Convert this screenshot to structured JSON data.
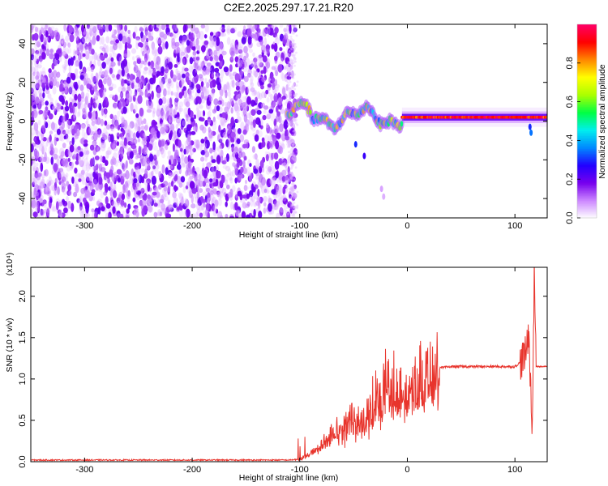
{
  "chart_data": [
    {
      "type": "heatmap",
      "title": "C2E2.2025.297.17.21.R20",
      "xlabel": "Height of straight line (km)",
      "ylabel": "Frequency (Hz)",
      "xlim": [
        -350,
        130
      ],
      "ylim": [
        -50,
        50
      ],
      "xticks": [
        "-300",
        "-200",
        "-100",
        "0",
        "100"
      ],
      "xtick_values": [
        -300,
        -200,
        -100,
        0,
        100
      ],
      "yticks": [
        "-40",
        "-20",
        "0",
        "20",
        "40"
      ],
      "ytick_values": [
        -40,
        -20,
        0,
        20,
        40
      ],
      "colorbar": {
        "label": "Normalized spectral amplitude",
        "range": [
          0,
          1
        ],
        "ticks": [
          "0.0",
          "0.2",
          "0.4",
          "0.6",
          "0.8"
        ],
        "tick_values": [
          0.0,
          0.2,
          0.4,
          0.6,
          0.8
        ],
        "colors": [
          "#ffffff",
          "#cc88ff",
          "#7700ee",
          "#2200ff",
          "#0088ff",
          "#00eeee",
          "#00ff44",
          "#aaff00",
          "#ffff00",
          "#ff8800",
          "#ff0000",
          "#ff0066"
        ]
      },
      "regions": [
        {
          "name": "broadband noise",
          "x_range": [
            -350,
            -110
          ],
          "y_range": [
            -50,
            50
          ],
          "amplitude": 0.15
        },
        {
          "name": "narrow line",
          "x_range": [
            -110,
            130
          ],
          "frequency_hz": 2,
          "max_amplitude": 1.0
        }
      ]
    },
    {
      "type": "line",
      "xlabel": "Height of straight line (km)",
      "ylabel": "SNR (10 * v/v)",
      "yscale_label": "(x10⁴)",
      "xlim": [
        -350,
        130
      ],
      "ylim": [
        0,
        2.35
      ],
      "xticks": [
        "-300",
        "-200",
        "-100",
        "0",
        "100"
      ],
      "xtick_values": [
        -300,
        -200,
        -100,
        0,
        100
      ],
      "yticks": [
        "0.0",
        "0.5",
        "1.0",
        "1.5",
        "2.0"
      ],
      "ytick_values": [
        0.0,
        0.5,
        1.0,
        1.5,
        2.0
      ],
      "series": [
        {
          "name": "SNR",
          "color": "#e8342c",
          "x": [
            -350,
            -110,
            -100,
            -90,
            -80,
            -70,
            -60,
            -50,
            -40,
            -30,
            -20,
            -10,
            0,
            10,
            20,
            30,
            40,
            60,
            80,
            100,
            105,
            110,
            113,
            116,
            118,
            120,
            130
          ],
          "y": [
            0.02,
            0.02,
            0.03,
            0.1,
            0.2,
            0.35,
            0.4,
            0.6,
            0.45,
            0.7,
            0.85,
            0.9,
            0.95,
            1.05,
            1.1,
            1.13,
            1.15,
            1.15,
            1.15,
            1.15,
            1.2,
            1.3,
            1.6,
            0.3,
            2.3,
            1.15,
            1.15
          ]
        }
      ]
    }
  ]
}
